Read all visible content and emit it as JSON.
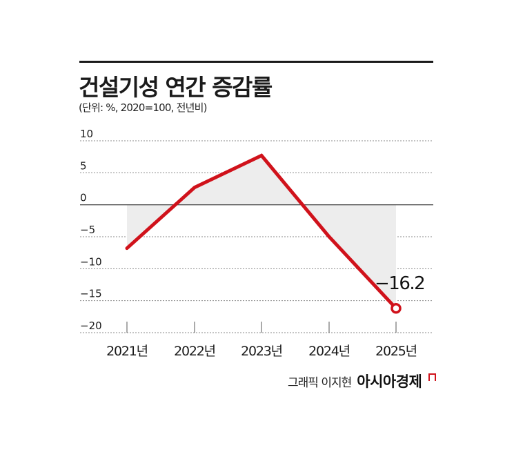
{
  "title": "건설기성 연간 증감률",
  "subtitle": "(단위: %, 2020=100, 전년비)",
  "credit": {
    "graphic": "그래픽 이지현",
    "brand": "아시아경제"
  },
  "colors": {
    "line": "#d0121b",
    "fill": "#ededed",
    "grid": "#888888",
    "zero_line": "#555555"
  },
  "annotation": {
    "label": "−16.2",
    "category": "2025년",
    "value": -16.2
  },
  "chart_data": {
    "type": "line",
    "title": "건설기성 연간 증감률",
    "subtitle": "(단위: %, 2020=100, 전년비)",
    "xlabel": "",
    "ylabel": "",
    "categories": [
      "2021년",
      "2022년",
      "2023년",
      "2024년",
      "2025년"
    ],
    "series": [
      {
        "name": "건설기성 연간 증감률",
        "values": [
          -6.8,
          2.7,
          7.7,
          -5.0,
          -16.2
        ]
      }
    ],
    "yticks": [
      10,
      5,
      0,
      -5,
      -10,
      -15,
      -20
    ],
    "ytick_labels": [
      "10",
      "5",
      "0",
      "−5",
      "−10",
      "−15",
      "−20"
    ],
    "ylim": [
      -20,
      10
    ],
    "grid": "horizontal dotted",
    "fill": "area between line and zero baseline shaded gray",
    "legend": "none",
    "annotations": [
      {
        "category": "2025년",
        "text": "−16.2",
        "marker": "hollow circle"
      }
    ]
  }
}
